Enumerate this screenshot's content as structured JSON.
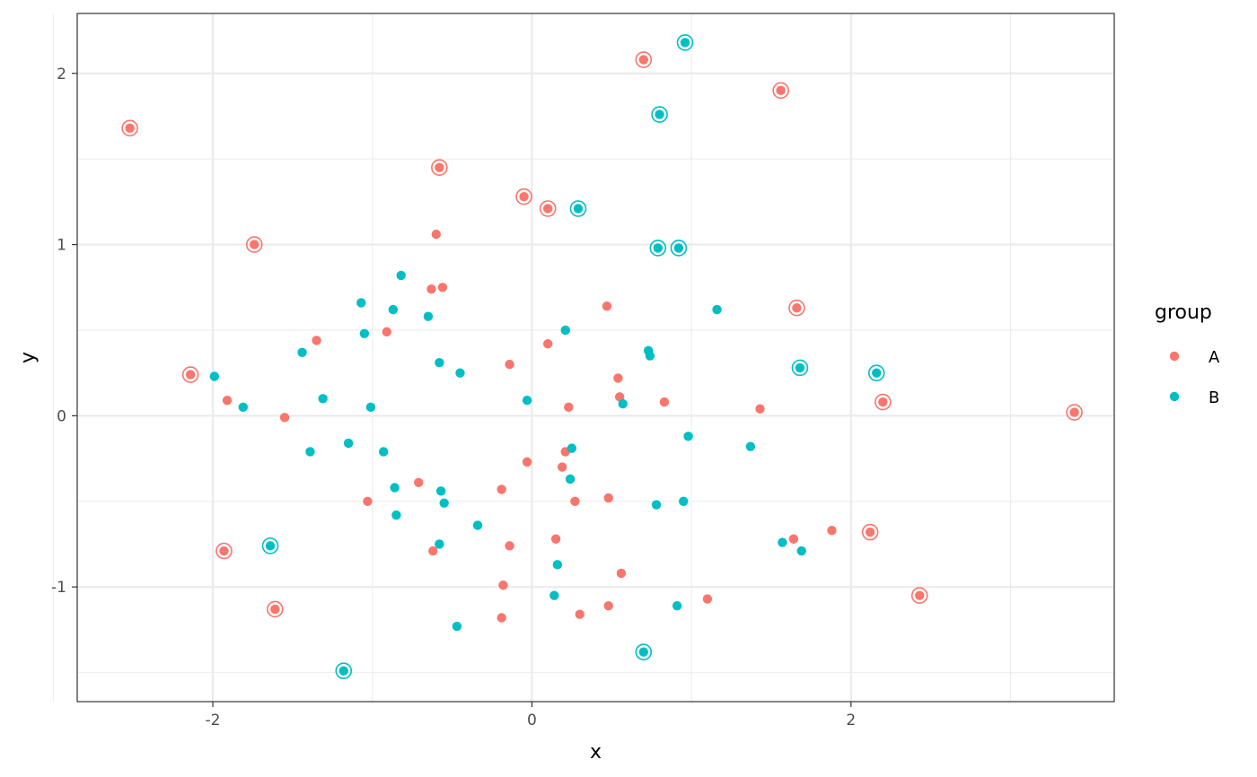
{
  "chart_data": {
    "type": "scatter",
    "title": "",
    "xlabel": "x",
    "ylabel": "y",
    "xlim": [
      -2.85,
      3.65
    ],
    "ylim": [
      -1.67,
      2.35
    ],
    "x_ticks": [
      -2,
      0,
      2
    ],
    "x_tick_labels": [
      "-2",
      "0",
      "2"
    ],
    "y_ticks": [
      -1,
      0,
      1,
      2
    ],
    "y_tick_labels": [
      "-1",
      "0",
      "1",
      "2"
    ],
    "x_minor_ticks": [
      -3,
      -1,
      1,
      3
    ],
    "y_minor_ticks": [
      -1.5,
      -0.5,
      0.5,
      1.5
    ],
    "grid": true,
    "theme": "bw",
    "legend": {
      "title": "group",
      "position": "right",
      "entries": [
        {
          "label": "A",
          "color": "#F8766D"
        },
        {
          "label": "B",
          "color": "#00BFC4"
        }
      ]
    },
    "annotation": "outlier points are drawn with a surrounding open ring",
    "series": [
      {
        "name": "A",
        "color": "#F8766D",
        "points": [
          [
            -2.52,
            1.68,
            true
          ],
          [
            -1.74,
            1.0,
            true
          ],
          [
            -2.14,
            0.24,
            true
          ],
          [
            -1.91,
            0.09,
            false
          ],
          [
            -1.55,
            -0.01,
            false
          ],
          [
            -1.35,
            0.44,
            false
          ],
          [
            -0.91,
            0.49,
            false
          ],
          [
            -1.03,
            -0.5,
            false
          ],
          [
            -0.71,
            -0.39,
            false
          ],
          [
            -0.6,
            1.06,
            false
          ],
          [
            -0.58,
            1.45,
            true
          ],
          [
            -0.63,
            0.74,
            false
          ],
          [
            -0.56,
            0.75,
            false
          ],
          [
            -0.62,
            -0.79,
            false
          ],
          [
            -1.93,
            -0.79,
            true
          ],
          [
            -1.61,
            -1.13,
            true
          ],
          [
            -0.19,
            -0.43,
            false
          ],
          [
            -0.14,
            0.3,
            false
          ],
          [
            -0.14,
            -0.76,
            false
          ],
          [
            -0.18,
            -0.99,
            false
          ],
          [
            -0.19,
            -1.18,
            false
          ],
          [
            -0.05,
            1.28,
            true
          ],
          [
            -0.03,
            -0.27,
            false
          ],
          [
            0.1,
            1.21,
            true
          ],
          [
            0.1,
            0.42,
            false
          ],
          [
            0.15,
            -0.72,
            false
          ],
          [
            0.19,
            -0.3,
            false
          ],
          [
            0.21,
            -0.21,
            false
          ],
          [
            0.23,
            0.05,
            false
          ],
          [
            0.27,
            -0.5,
            false
          ],
          [
            0.3,
            -1.16,
            false
          ],
          [
            0.47,
            0.64,
            false
          ],
          [
            0.48,
            -0.48,
            false
          ],
          [
            0.54,
            0.22,
            false
          ],
          [
            0.55,
            0.11,
            false
          ],
          [
            0.56,
            -0.92,
            false
          ],
          [
            0.48,
            -1.11,
            false
          ],
          [
            0.7,
            2.08,
            true
          ],
          [
            0.83,
            0.08,
            false
          ],
          [
            1.1,
            -1.07,
            false
          ],
          [
            1.43,
            0.04,
            false
          ],
          [
            1.56,
            1.9,
            true
          ],
          [
            1.66,
            0.63,
            true
          ],
          [
            1.64,
            -0.72,
            false
          ],
          [
            1.88,
            -0.67,
            false
          ],
          [
            2.12,
            -0.68,
            true
          ],
          [
            2.2,
            0.08,
            true
          ],
          [
            2.43,
            -1.05,
            true
          ],
          [
            3.4,
            0.02,
            true
          ]
        ]
      },
      {
        "name": "B",
        "color": "#00BFC4",
        "points": [
          [
            -1.99,
            0.23,
            false
          ],
          [
            -1.81,
            0.05,
            false
          ],
          [
            -1.44,
            0.37,
            false
          ],
          [
            -1.39,
            -0.21,
            false
          ],
          [
            -1.31,
            0.1,
            false
          ],
          [
            -1.15,
            -0.16,
            false
          ],
          [
            -1.07,
            0.66,
            false
          ],
          [
            -1.05,
            0.48,
            false
          ],
          [
            -1.01,
            0.05,
            false
          ],
          [
            -0.93,
            -0.21,
            false
          ],
          [
            -0.87,
            0.62,
            false
          ],
          [
            -0.86,
            -0.42,
            false
          ],
          [
            -0.85,
            -0.58,
            false
          ],
          [
            -0.82,
            0.82,
            false
          ],
          [
            -0.65,
            0.58,
            false
          ],
          [
            -0.58,
            0.31,
            false
          ],
          [
            -0.57,
            -0.44,
            false
          ],
          [
            -0.55,
            -0.51,
            false
          ],
          [
            -0.58,
            -0.75,
            false
          ],
          [
            -0.45,
            0.25,
            false
          ],
          [
            -0.47,
            -1.23,
            false
          ],
          [
            -0.34,
            -0.64,
            false
          ],
          [
            -0.03,
            0.09,
            false
          ],
          [
            0.14,
            -1.05,
            false
          ],
          [
            0.16,
            -0.87,
            false
          ],
          [
            0.21,
            0.5,
            false
          ],
          [
            0.24,
            -0.37,
            false
          ],
          [
            0.25,
            -0.19,
            false
          ],
          [
            0.29,
            1.21,
            true
          ],
          [
            0.57,
            0.07,
            false
          ],
          [
            0.73,
            0.38,
            false
          ],
          [
            0.74,
            0.35,
            false
          ],
          [
            0.79,
            0.98,
            true
          ],
          [
            0.8,
            1.76,
            true
          ],
          [
            0.78,
            -0.52,
            false
          ],
          [
            0.92,
            0.98,
            true
          ],
          [
            0.96,
            2.18,
            true
          ],
          [
            0.95,
            -0.5,
            false
          ],
          [
            0.98,
            -0.12,
            false
          ],
          [
            0.91,
            -1.11,
            false
          ],
          [
            1.16,
            0.62,
            false
          ],
          [
            1.37,
            -0.18,
            false
          ],
          [
            1.57,
            -0.74,
            false
          ],
          [
            1.69,
            -0.79,
            false
          ],
          [
            1.68,
            0.28,
            true
          ],
          [
            2.16,
            0.25,
            true
          ],
          [
            0.7,
            -1.38,
            true
          ],
          [
            -1.64,
            -0.76,
            true
          ],
          [
            -1.18,
            -1.49,
            true
          ]
        ]
      }
    ]
  }
}
